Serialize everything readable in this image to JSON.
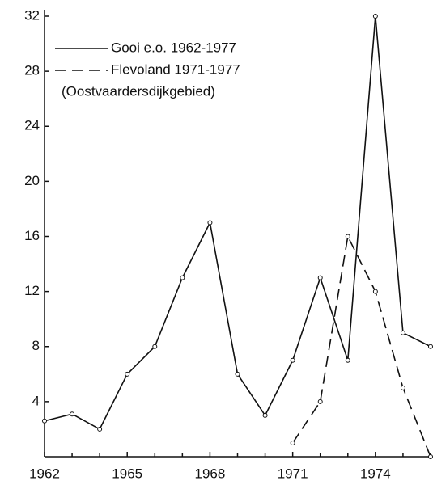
{
  "chart_data": {
    "type": "line",
    "x": [
      1962,
      1963,
      1964,
      1965,
      1966,
      1967,
      1968,
      1969,
      1970,
      1971,
      1972,
      1973,
      1974,
      1975,
      1976
    ],
    "series": [
      {
        "name": "Gooi e.o. 1962-1977",
        "color": "#111111",
        "line_style": "solid",
        "values": [
          2.6,
          3.1,
          2,
          6,
          8,
          13,
          17,
          6,
          3,
          7,
          13,
          7,
          32,
          9,
          8
        ]
      },
      {
        "name": "Flevoland 1971-1977",
        "color": "#111111",
        "line_style": "dashed",
        "values": [
          null,
          null,
          null,
          null,
          null,
          null,
          null,
          null,
          null,
          1,
          4,
          16,
          12,
          5,
          0
        ]
      }
    ],
    "annotations": [
      "(Oostvaardersdijkgebied)"
    ],
    "xlim": [
      1962,
      1976
    ],
    "xticks": [
      1962,
      1965,
      1968,
      1971,
      1974
    ],
    "xticks_minor": [
      1963,
      1964,
      1966,
      1967,
      1969,
      1970,
      1972,
      1973,
      1975,
      1976
    ],
    "ylim": [
      0,
      32
    ],
    "yticks": [
      4,
      8,
      12,
      16,
      20,
      24,
      28,
      32
    ],
    "legend": "upper left",
    "grid": false
  }
}
